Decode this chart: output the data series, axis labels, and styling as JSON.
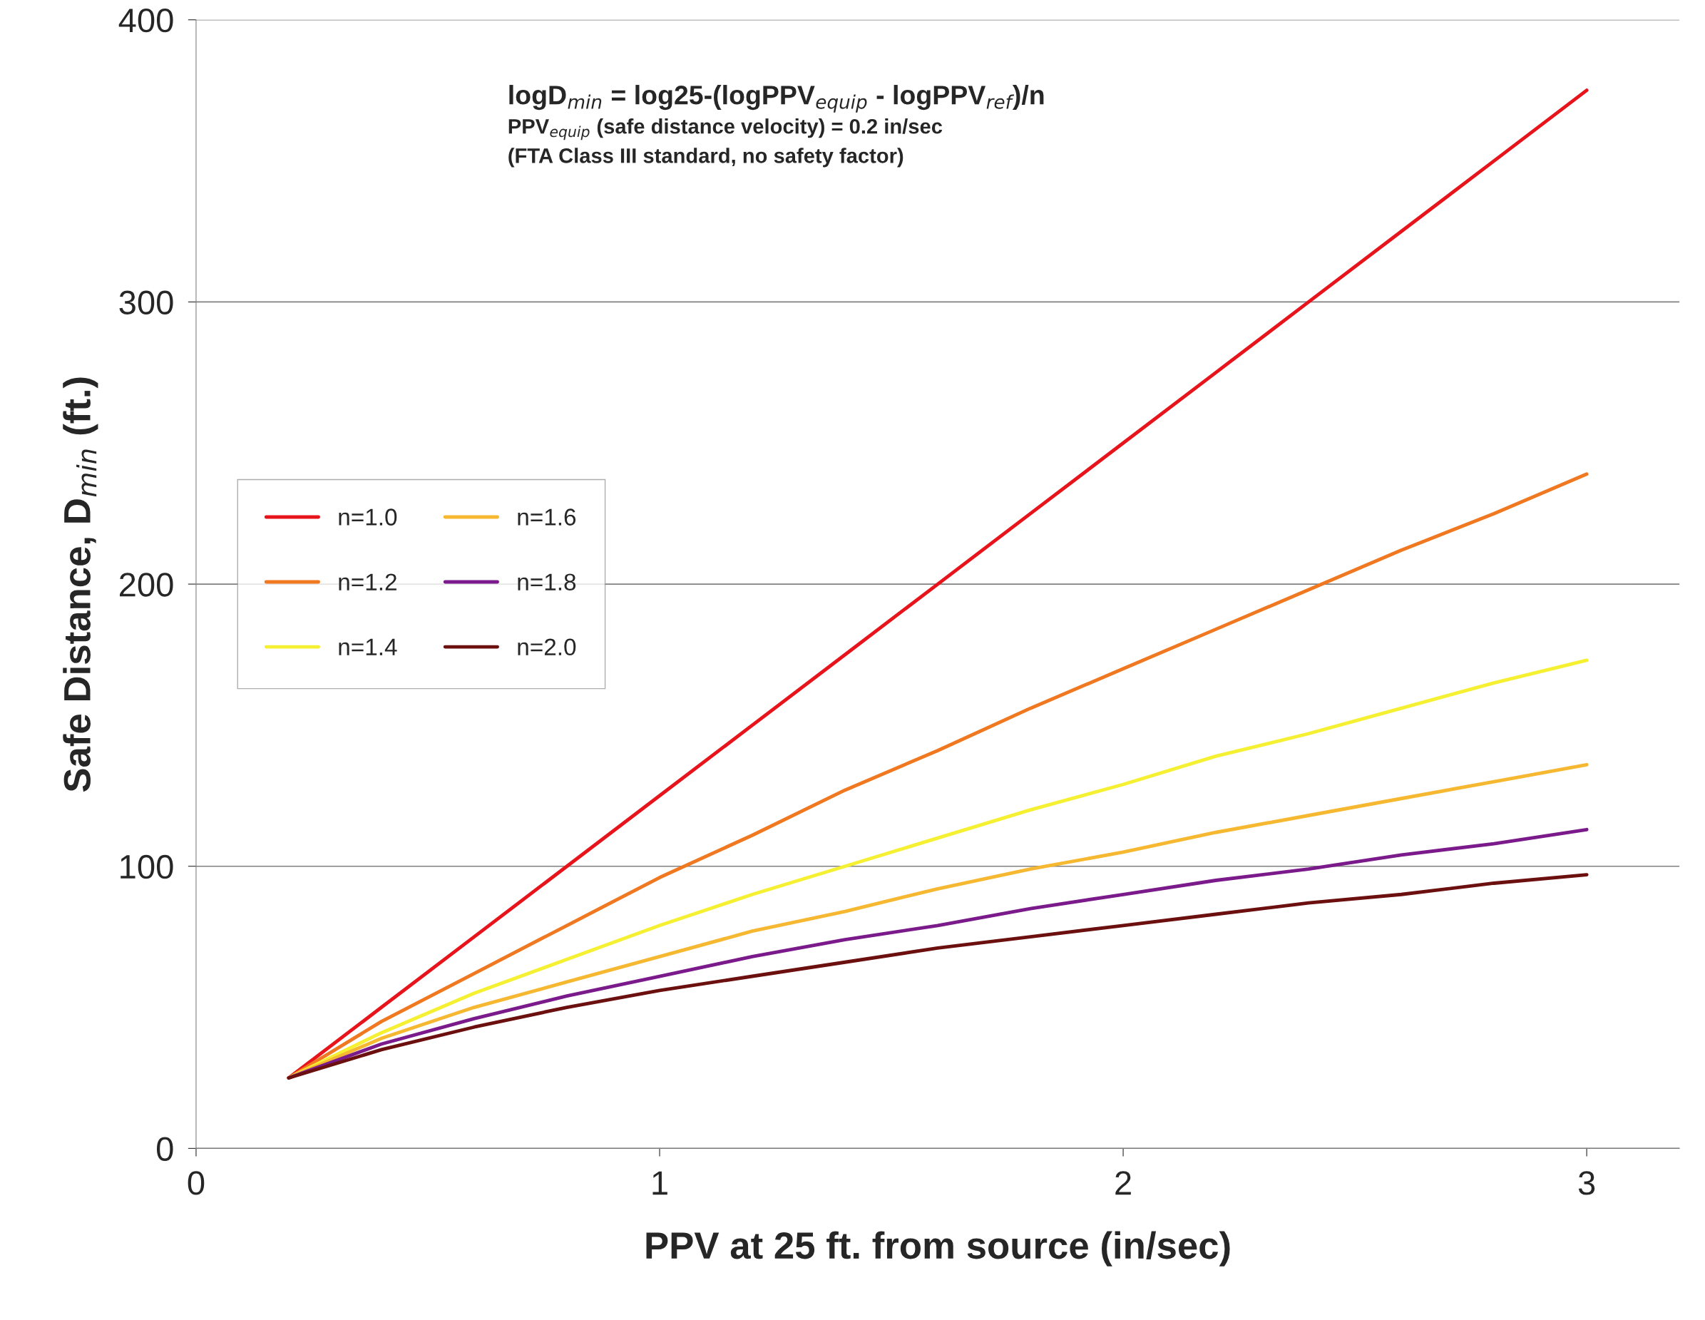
{
  "chart_data": {
    "type": "line",
    "xlabel": "PPV at 25 ft. from source (in/sec)",
    "ylabel": "Safe Distance, D$_{min}$ (ft.)",
    "x": [
      0.2,
      0.4,
      0.6,
      0.8,
      1.0,
      1.2,
      1.4,
      1.6,
      1.8,
      2.0,
      2.2,
      2.4,
      2.6,
      2.8,
      3.0
    ],
    "series": [
      {
        "name": "n=1.0",
        "color": "#e8141b",
        "values": [
          25,
          50,
          75,
          100,
          125,
          150,
          175,
          200,
          225,
          250,
          275,
          300,
          325,
          350,
          375
        ]
      },
      {
        "name": "n=1.2",
        "color": "#f07820",
        "values": [
          25,
          45,
          62,
          79,
          96,
          111,
          127,
          141,
          156,
          170,
          184,
          198,
          212,
          225,
          239
        ]
      },
      {
        "name": "n=1.4",
        "color": "#f5f032",
        "values": [
          25,
          41,
          55,
          67,
          79,
          90,
          100,
          110,
          120,
          129,
          139,
          147,
          156,
          165,
          173
        ]
      },
      {
        "name": "n=1.6",
        "color": "#f5b830",
        "values": [
          25,
          39,
          50,
          59,
          68,
          77,
          84,
          92,
          99,
          105,
          112,
          118,
          124,
          130,
          136
        ]
      },
      {
        "name": "n=1.8",
        "color": "#7b1a8a",
        "values": [
          25,
          37,
          46,
          54,
          61,
          68,
          74,
          79,
          85,
          90,
          95,
          99,
          104,
          108,
          113
        ]
      },
      {
        "name": "n=2.0",
        "color": "#6b0f0f",
        "values": [
          25,
          35,
          43,
          50,
          56,
          61,
          66,
          71,
          75,
          79,
          83,
          87,
          90,
          94,
          97
        ]
      }
    ],
    "xlim": [
      0,
      3.2
    ],
    "xticks": [
      0,
      1,
      2,
      3
    ],
    "ylim": [
      0,
      400
    ],
    "yticks": [
      0,
      100,
      200,
      300,
      400
    ],
    "grid": "y",
    "legend": "left",
    "marker": "none",
    "line_style": "solid",
    "annotations": [
      "logD$_{min}$ = log25-(logPPV$_{equip}$ - logPPV$_{ref}$)/n",
      "PPV$_{equip}$ (safe distance velocity) = 0.2 in/sec",
      "(FTA Class III standard, no safety factor)"
    ]
  }
}
